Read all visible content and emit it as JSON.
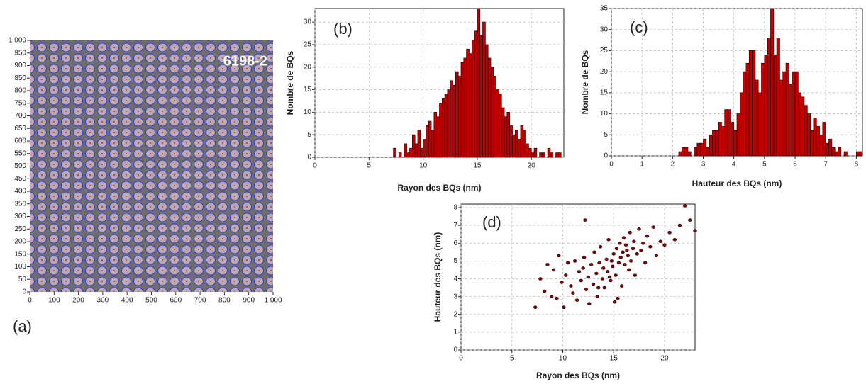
{
  "chart_data": [
    {
      "type": "image",
      "label": "(a)",
      "annotation": "6198-2",
      "xlim": [
        0,
        1000
      ],
      "ylim": [
        0,
        1000
      ],
      "xticks": [
        0,
        100,
        200,
        300,
        400,
        500,
        600,
        700,
        800,
        900,
        {
          "value": 1000,
          "label": "1 000"
        }
      ],
      "yticks": [
        0,
        50,
        100,
        150,
        200,
        250,
        300,
        350,
        400,
        450,
        500,
        550,
        600,
        650,
        700,
        750,
        800,
        850,
        900,
        950,
        {
          "value": 1000,
          "label": "1 000"
        }
      ]
    },
    {
      "type": "histogram",
      "label": "(b)",
      "xlabel": "Rayon des BQs (nm)",
      "ylabel": "Nombre de BQs",
      "color": "#c00000",
      "grid": true,
      "xlim": [
        0,
        23
      ],
      "ylim": [
        0,
        33
      ],
      "xticks": [
        0,
        5,
        10,
        15,
        20
      ],
      "yticks": [
        0,
        5,
        10,
        15,
        20,
        25,
        30
      ],
      "bins": [
        7,
        7.25,
        7.5,
        7.75,
        8,
        8.25,
        8.5,
        8.75,
        9,
        9.25,
        9.5,
        9.75,
        10,
        10.25,
        10.5,
        10.75,
        11,
        11.25,
        11.5,
        11.75,
        12,
        12.25,
        12.5,
        12.75,
        13,
        13.25,
        13.5,
        13.75,
        14,
        14.25,
        14.5,
        14.75,
        15,
        15.25,
        15.5,
        15.75,
        16,
        16.25,
        16.5,
        16.75,
        17,
        17.25,
        17.5,
        17.75,
        18,
        18.25,
        18.5,
        18.75,
        19,
        19.25,
        19.5,
        19.75,
        20,
        20.25,
        20.5,
        20.75,
        21,
        21.25,
        21.5,
        21.75,
        22,
        22.25,
        22.5,
        22.75,
        23
      ],
      "values": [
        0,
        2,
        0,
        1,
        0,
        3,
        1,
        2,
        5,
        3,
        6,
        2,
        4,
        7,
        8,
        6,
        10,
        9,
        12,
        13,
        14,
        15,
        17,
        16,
        19,
        18,
        21,
        22,
        24,
        23,
        26,
        28,
        33,
        27,
        30,
        25,
        22,
        20,
        18,
        15,
        14,
        11,
        9,
        10,
        7,
        5,
        6,
        4,
        7,
        6,
        3,
        2,
        1,
        2,
        0,
        1,
        1,
        0,
        2,
        1,
        0,
        1,
        1,
        0
      ]
    },
    {
      "type": "histogram",
      "label": "(c)",
      "xlabel": "Hauteur des BQs (nm)",
      "ylabel": "Nombre de BQs",
      "color": "#c00000",
      "grid": true,
      "xlim": [
        0,
        8.2
      ],
      "ylim": [
        0,
        35
      ],
      "xticks": [
        0,
        1,
        2,
        3,
        4,
        5,
        6,
        7,
        8
      ],
      "yticks": [
        0,
        5,
        10,
        15,
        20,
        25,
        30,
        35
      ],
      "bins": [
        2.2,
        2.3,
        2.4,
        2.5,
        2.6,
        2.7,
        2.8,
        2.9,
        3,
        3.1,
        3.2,
        3.3,
        3.4,
        3.5,
        3.6,
        3.7,
        3.8,
        3.9,
        4,
        4.1,
        4.2,
        4.3,
        4.4,
        4.5,
        4.6,
        4.7,
        4.8,
        4.9,
        5,
        5.1,
        5.2,
        5.3,
        5.4,
        5.5,
        5.6,
        5.7,
        5.8,
        5.9,
        6,
        6.1,
        6.2,
        6.3,
        6.4,
        6.5,
        6.6,
        6.7,
        6.8,
        6.9,
        7,
        7.1,
        7.2,
        7.3,
        7.4,
        7.5,
        7.6,
        7.7,
        7.8,
        7.9,
        8,
        8.1,
        8.2
      ],
      "values": [
        1,
        2,
        2,
        1,
        0,
        2,
        3,
        3,
        4,
        2,
        5,
        6,
        6,
        8,
        7,
        11,
        11,
        8,
        6,
        10,
        15,
        20,
        22,
        25,
        25,
        18,
        15,
        22,
        24,
        28,
        35,
        24,
        28,
        18,
        20,
        22,
        17,
        20,
        20,
        15,
        14,
        12,
        10,
        6,
        9,
        7,
        5,
        8,
        3,
        4,
        2,
        1,
        2,
        0,
        1,
        0,
        0,
        0,
        1,
        1
      ]
    },
    {
      "type": "scatter",
      "label": "(d)",
      "xlabel": "Rayon des BQs (nm)",
      "ylabel": "Hauteur des BQs (nm)",
      "color": "#7a0a0a",
      "grid": true,
      "xlim": [
        0,
        23
      ],
      "ylim": [
        0,
        8.2
      ],
      "xticks": [
        0,
        5,
        10,
        15,
        20
      ],
      "yticks": [
        0,
        1,
        2,
        3,
        4,
        5,
        6,
        7,
        8
      ],
      "x": [
        7.3,
        7.8,
        8.2,
        8.5,
        8.9,
        9.1,
        9.4,
        9.6,
        9.9,
        10.1,
        10.3,
        10.5,
        10.8,
        11.0,
        11.2,
        11.4,
        11.6,
        11.8,
        12.0,
        12.1,
        12.3,
        12.5,
        12.6,
        12.8,
        13.0,
        13.1,
        13.3,
        13.4,
        13.6,
        13.7,
        13.9,
        14.0,
        14.1,
        14.3,
        14.4,
        14.5,
        14.7,
        14.8,
        14.9,
        15.0,
        15.1,
        15.2,
        15.3,
        15.5,
        15.6,
        15.7,
        15.8,
        15.9,
        16.0,
        16.1,
        16.2,
        16.4,
        16.5,
        16.6,
        16.7,
        16.9,
        17.0,
        17.1,
        17.3,
        17.5,
        17.7,
        17.9,
        18.1,
        18.3,
        18.6,
        18.9,
        19.2,
        19.6,
        20.0,
        20.5,
        21.0,
        21.5,
        22.0,
        22.5,
        23.0,
        12.2,
        13.5,
        14.6,
        15.4,
        16.3
      ],
      "values": [
        2.4,
        4.0,
        3.3,
        4.8,
        3.0,
        4.5,
        2.9,
        5.3,
        3.8,
        2.4,
        4.2,
        4.9,
        3.6,
        3.2,
        5.0,
        2.8,
        4.4,
        3.9,
        4.6,
        5.2,
        3.4,
        4.1,
        2.6,
        4.8,
        3.7,
        5.5,
        4.3,
        3.0,
        4.9,
        5.8,
        4.0,
        4.6,
        3.5,
        5.1,
        4.4,
        6.2,
        3.9,
        5.0,
        4.7,
        5.4,
        2.7,
        4.2,
        5.7,
        4.9,
        6.0,
        5.2,
        3.6,
        5.5,
        6.3,
        4.8,
        5.9,
        5.3,
        4.5,
        6.6,
        5.0,
        5.7,
        6.1,
        4.2,
        5.4,
        6.8,
        5.6,
        6.0,
        4.9,
        6.4,
        5.8,
        6.9,
        5.3,
        6.1,
        5.9,
        6.6,
        6.2,
        7.0,
        8.1,
        7.3,
        6.7,
        7.3,
        3.5,
        4.1,
        2.9,
        5.6
      ]
    }
  ]
}
